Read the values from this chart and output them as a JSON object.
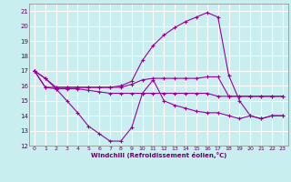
{
  "xlabel": "Windchill (Refroidissement éolien,°C)",
  "xlim": [
    -0.5,
    23.5
  ],
  "ylim": [
    12,
    21.5
  ],
  "yticks": [
    12,
    13,
    14,
    15,
    16,
    17,
    18,
    19,
    20,
    21
  ],
  "xticks": [
    0,
    1,
    2,
    3,
    4,
    5,
    6,
    7,
    8,
    9,
    10,
    11,
    12,
    13,
    14,
    15,
    16,
    17,
    18,
    19,
    20,
    21,
    22,
    23
  ],
  "background_color": "#c8eef0",
  "grid_color": "#ffffff",
  "line_color": "#990099",
  "line1_y": [
    17.0,
    16.5,
    15.8,
    15.0,
    14.2,
    13.3,
    12.8,
    12.3,
    12.3,
    13.2,
    15.5,
    16.4,
    15.0,
    14.7,
    14.5,
    14.3,
    14.2,
    14.2,
    14.0,
    13.8,
    14.0,
    13.8,
    14.0,
    14.0
  ],
  "line2_y": [
    17.0,
    15.9,
    15.8,
    15.8,
    15.8,
    15.7,
    15.6,
    15.5,
    15.5,
    15.5,
    15.5,
    15.5,
    15.5,
    15.5,
    15.5,
    15.5,
    15.5,
    15.3,
    15.3,
    15.3,
    15.3,
    15.3,
    15.3,
    15.3
  ],
  "line3_y": [
    17.0,
    15.9,
    15.9,
    15.9,
    15.9,
    15.9,
    15.9,
    15.9,
    15.9,
    16.1,
    16.4,
    16.5,
    16.5,
    16.5,
    16.5,
    16.5,
    16.6,
    16.6,
    15.3,
    15.3,
    15.3,
    15.3,
    15.3,
    15.3
  ],
  "line4_y": [
    17.0,
    16.5,
    15.9,
    15.9,
    15.9,
    15.9,
    15.9,
    15.9,
    16.0,
    16.3,
    17.7,
    18.7,
    19.4,
    19.9,
    20.3,
    20.6,
    20.9,
    20.6,
    16.7,
    15.0,
    14.0,
    13.8,
    14.0,
    14.0
  ]
}
